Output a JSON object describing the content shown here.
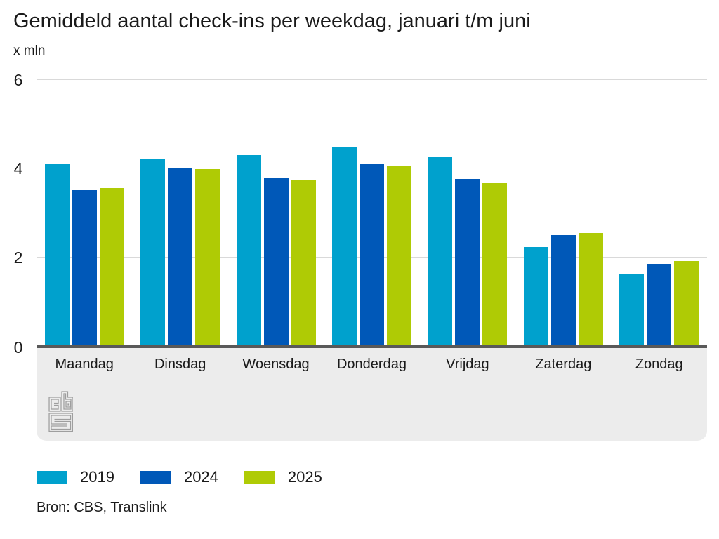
{
  "chart": {
    "title": "Gemiddeld aantal check-ins per weekdag, januari t/m juni",
    "unit": "x mln",
    "source": "Bron: CBS, Translink",
    "logo": "cbs-logo"
  },
  "chart_data": {
    "type": "bar",
    "title": "Gemiddeld aantal check-ins per weekdag, januari t/m juni",
    "xlabel": "",
    "ylabel": "x mln",
    "ylim": [
      0,
      6
    ],
    "yticks": [
      6,
      4,
      2,
      0
    ],
    "grid": true,
    "legend_position": "bottom",
    "categories": [
      "Maandag",
      "Dinsdag",
      "Woensdag",
      "Donderdag",
      "Vrijdag",
      "Zaterdag",
      "Zondag"
    ],
    "series": [
      {
        "name": "2019",
        "color": "#00a1cd",
        "values": [
          4.08,
          4.19,
          4.29,
          4.46,
          4.24,
          2.22,
          1.61
        ]
      },
      {
        "name": "2024",
        "color": "#0058b8",
        "values": [
          3.5,
          4.0,
          3.78,
          4.08,
          3.76,
          2.49,
          1.84
        ]
      },
      {
        "name": "2025",
        "color": "#afcb05",
        "values": [
          3.55,
          3.97,
          3.72,
          4.05,
          3.65,
          2.53,
          1.9
        ]
      }
    ]
  },
  "colors": {
    "axis_line": "#595959",
    "gridline": "#d9d9d9",
    "band_background": "#ececec",
    "text": "#1a1a1a",
    "logo_gray": "#9e9e9e"
  }
}
